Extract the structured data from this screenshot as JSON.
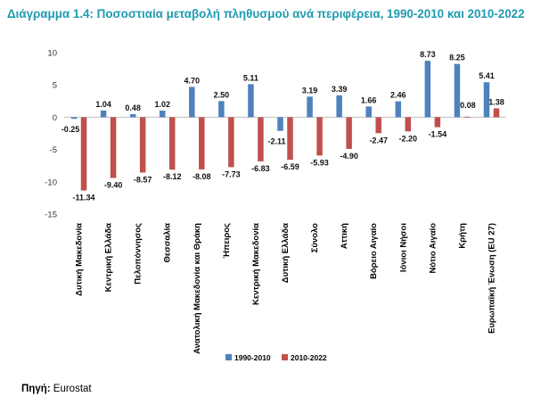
{
  "title": "Διάγραμμα 1.4: Ποσοστιαία μεταβολή πληθυσμού ανά περιφέρεια, 1990-2010 και 2010-2022",
  "source_label": "Πηγή:",
  "source_value": " Eurostat",
  "chart_data": {
    "type": "bar",
    "title": "Διάγραμμα 1.4: Ποσοστιαία μεταβολή πληθυσμού ανά περιφέρεια, 1990-2010 και 2010-2022",
    "xlabel": "",
    "ylabel": "",
    "ylim": [
      -15,
      10
    ],
    "yticks": [
      -15,
      -10,
      -5,
      0,
      5,
      10
    ],
    "grid": false,
    "legend_position": "bottom",
    "categories": [
      "Δυτική Μακεδονία",
      "Κεντρική Ελλάδα",
      "Πελοπόννησος",
      "Θεσσαλία",
      "Ανατολική Μακεδονία και Θράκη",
      "Ήπειρος",
      "Κεντρική Μακεδονία",
      "Δυτική Ελλάδα",
      "Σύνολο",
      "Αττική",
      "Βόρειο Αιγαίο",
      "Ιόνιοι Νήσοι",
      "Νότιο Αιγαίο",
      "Κρήτη",
      "Ευρωπαϊκή Ένωση (EU 27)"
    ],
    "series": [
      {
        "name": "1990-2010",
        "color": "#4f81bd",
        "values": [
          -0.25,
          1.04,
          0.48,
          1.02,
          4.7,
          2.5,
          5.11,
          -2.11,
          3.19,
          3.39,
          1.66,
          2.46,
          8.73,
          8.25,
          5.41
        ],
        "labels": [
          "-0.25",
          "1.04",
          "0.48",
          "1.02",
          "4.70",
          "2.50",
          "5.11",
          "-2.11",
          "3.19",
          "3.39",
          "1.66",
          "2.46",
          "8.73",
          "8.25",
          "5.41"
        ]
      },
      {
        "name": "2010-2022",
        "color": "#c0504d",
        "values": [
          -11.34,
          -9.4,
          -8.57,
          -8.12,
          -8.08,
          -7.73,
          -6.83,
          -6.59,
          -5.93,
          -4.9,
          -2.47,
          -2.2,
          -1.54,
          0.08,
          1.38
        ],
        "labels": [
          "-11.34",
          "-9.40",
          "-8.57",
          "-8.12",
          "-8.08",
          "-7.73",
          "-6.83",
          "-6.59",
          "-5.93",
          "-4.90",
          "-2.47",
          "-2.20",
          "-1.54",
          "0.08",
          "1.38"
        ]
      }
    ]
  }
}
